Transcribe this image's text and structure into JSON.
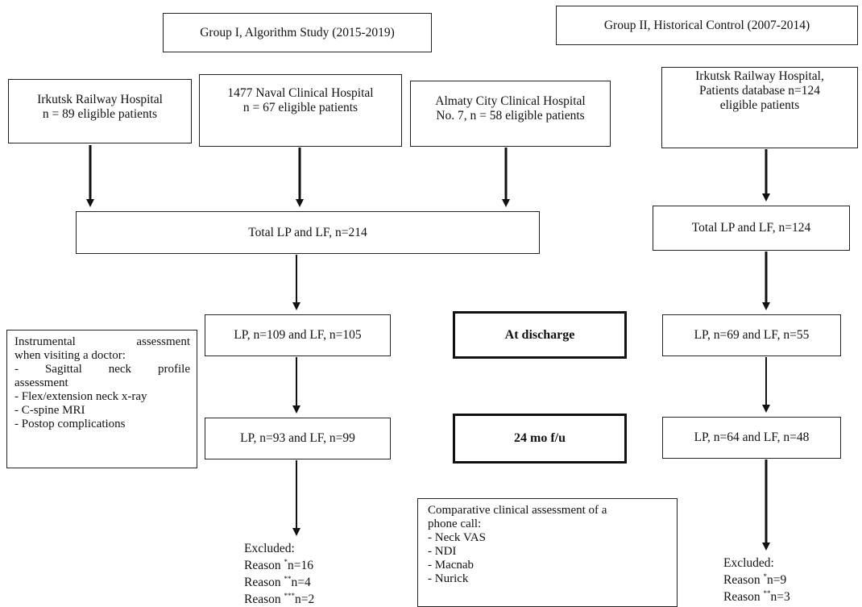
{
  "group1": {
    "title": "Group I, Algorithm Study (2015-2019)",
    "sites": [
      {
        "line1": "Irkutsk Railway Hospital",
        "line2": "n = 89 eligible patients"
      },
      {
        "line1": "1477 Naval Clinical Hospital",
        "line2": "n = 67 eligible patients"
      },
      {
        "line1": "Almaty City Clinical Hospital",
        "line2": "No. 7, n = 58 eligible patients"
      }
    ],
    "total": "Total LP and LF, n=214",
    "discharge": "LP, n=109 and LF, n=105",
    "followup": "LP, n=93 and LF, n=99",
    "excluded": {
      "heading": "Excluded:",
      "reasons": [
        {
          "label": "Reason",
          "mark": "*",
          "value": "n=16"
        },
        {
          "label": "Reason",
          "mark": "**",
          "value": "n=4"
        },
        {
          "label": "Reason",
          "mark": "***",
          "value": "n=2"
        }
      ]
    }
  },
  "group2": {
    "title": "Group II, Historical Control (2007-2014)",
    "site": {
      "line1": "Irkutsk Railway Hospital,",
      "line2": "Patients database n=124",
      "line3": "eligible patients"
    },
    "total": "Total LP and LF, n=124",
    "discharge": "LP, n=69 and LF, n=55",
    "followup": "LP, n=64 and LF, n=48",
    "excluded": {
      "heading": "Excluded:",
      "reasons": [
        {
          "label": "Reason",
          "mark": "*",
          "value": "n=9"
        },
        {
          "label": "Reason",
          "mark": "**",
          "value": "n=3"
        }
      ]
    }
  },
  "timepoints": {
    "discharge": "At discharge",
    "followup": "24 mo f/u"
  },
  "instrumental": {
    "line1a": "Instrumental",
    "line1b": "assessment",
    "line2": "when visiting a doctor:",
    "items": [
      {
        "a": "-",
        "b": "Sagittal",
        "c": "neck",
        "d": "profile"
      },
      {
        "text": "assessment"
      },
      {
        "text": "- Flex/extension neck x-ray"
      },
      {
        "text": "- C-spine MRI"
      },
      {
        "text": "- Postop complications"
      }
    ]
  },
  "comparative": {
    "line1": "Comparative clinical assessment of a",
    "line2": "phone call:",
    "items": [
      "- Neck VAS",
      "- NDI",
      "- Macnab",
      "- Nurick"
    ]
  }
}
